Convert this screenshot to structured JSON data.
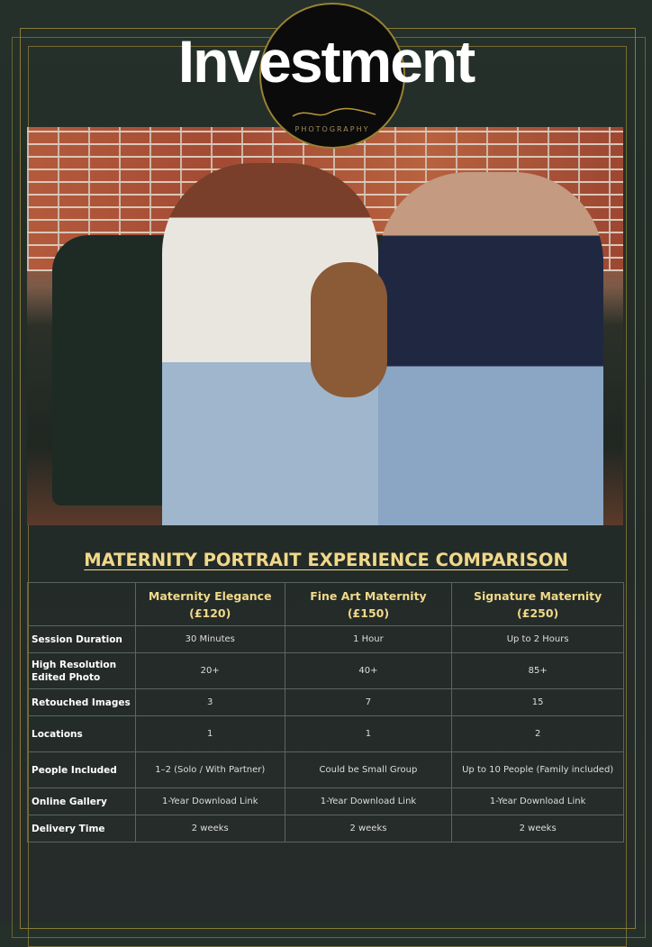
{
  "header": {
    "title": "Investment",
    "logo_text": "PHOTOGRAPHY"
  },
  "heading": "MATERNITY PORTRAIT EXPERIENCE COMPARISON",
  "table": {
    "columns": [
      {
        "name": "Maternity Elegance",
        "price": "(£120)"
      },
      {
        "name": "Fine Art Maternity",
        "price": "(£150)"
      },
      {
        "name": "Signature Maternity",
        "price": "(£250)"
      }
    ],
    "rows": [
      {
        "label": "Session Duration",
        "values": [
          "30 Minutes",
          "1 Hour",
          "Up to 2 Hours"
        ]
      },
      {
        "label": "High Resolution Edited Photo",
        "values": [
          "20+",
          "40+",
          "85+"
        ]
      },
      {
        "label": "Retouched Images",
        "values": [
          "3",
          "7",
          "15"
        ]
      },
      {
        "label": "Locations",
        "values": [
          "1",
          "1",
          "2"
        ]
      },
      {
        "label": "People Included",
        "values": [
          "1–2 (Solo / With Partner)",
          "Could be Small Group",
          "Up to 10 People (Family included)"
        ]
      },
      {
        "label": "Online Gallery",
        "values": [
          "1-Year Download Link",
          "1-Year Download Link",
          "1-Year Download Link"
        ]
      },
      {
        "label": "Delivery Time",
        "values": [
          "2 weeks",
          "2 weeks",
          "2 weeks"
        ]
      }
    ]
  },
  "colors": {
    "background": "#243029",
    "accent": "#f1d88a",
    "frame": "#8a7a3a"
  }
}
